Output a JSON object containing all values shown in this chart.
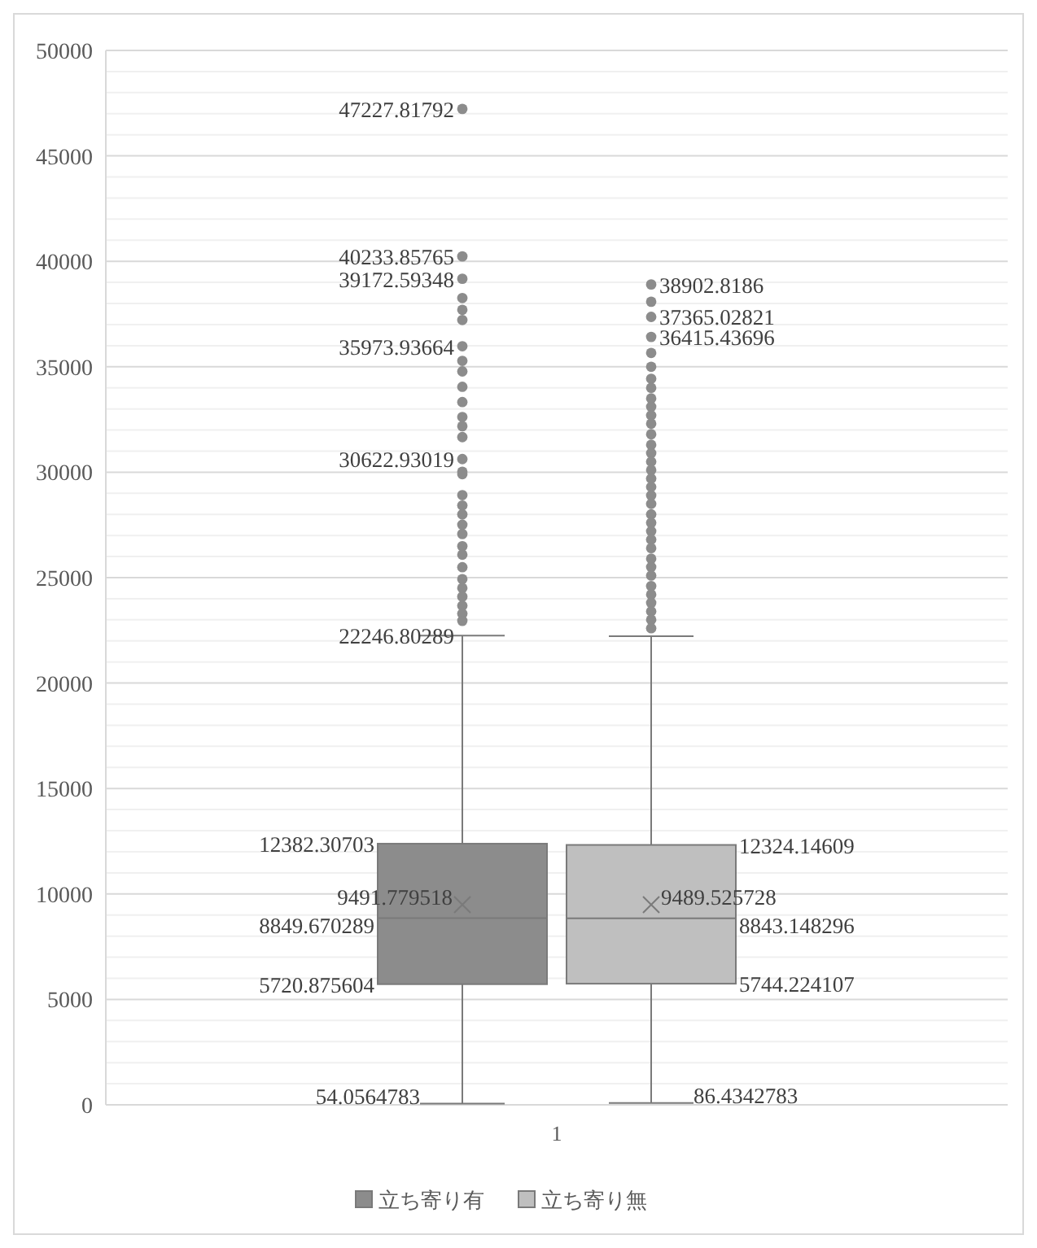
{
  "chart_data": {
    "type": "box",
    "categories": [
      "1"
    ],
    "ylim": [
      0,
      50000
    ],
    "yticks": [
      0,
      {
        "value": 1000,
        "label": null
      },
      {
        "value": 2000,
        "label": null
      },
      {
        "value": 3000,
        "label": null
      },
      {
        "value": 4000,
        "label": null
      },
      5000,
      {
        "value": 6000,
        "label": null
      },
      {
        "value": 7000,
        "label": null
      },
      {
        "value": 8000,
        "label": null
      },
      {
        "value": 9000,
        "label": null
      },
      10000,
      {
        "value": 11000,
        "label": null
      },
      {
        "value": 12000,
        "label": null
      },
      {
        "value": 13000,
        "label": null
      },
      {
        "value": 14000,
        "label": null
      },
      15000,
      {
        "value": 16000,
        "label": null
      },
      {
        "value": 17000,
        "label": null
      },
      {
        "value": 18000,
        "label": null
      },
      {
        "value": 19000,
        "label": null
      },
      20000,
      {
        "value": 21000,
        "label": null
      },
      {
        "value": 22000,
        "label": null
      },
      {
        "value": 23000,
        "label": null
      },
      {
        "value": 24000,
        "label": null
      },
      25000,
      {
        "value": 26000,
        "label": null
      },
      {
        "value": 27000,
        "label": null
      },
      {
        "value": 28000,
        "label": null
      },
      {
        "value": 29000,
        "label": null
      },
      30000,
      {
        "value": 31000,
        "label": null
      },
      {
        "value": 32000,
        "label": null
      },
      {
        "value": 33000,
        "label": null
      },
      {
        "value": 34000,
        "label": null
      },
      35000,
      {
        "value": 36000,
        "label": null
      },
      {
        "value": 37000,
        "label": null
      },
      {
        "value": 38000,
        "label": null
      },
      {
        "value": 39000,
        "label": null
      },
      40000,
      {
        "value": 41000,
        "label": null
      },
      {
        "value": 42000,
        "label": null
      },
      {
        "value": 43000,
        "label": null
      },
      {
        "value": 44000,
        "label": null
      },
      45000,
      {
        "value": 46000,
        "label": null
      },
      {
        "value": 47000,
        "label": null
      },
      {
        "value": 48000,
        "label": null
      },
      {
        "value": 49000,
        "label": null
      },
      50000
    ],
    "grid": "y",
    "legend": "bottom",
    "marker": "circle",
    "series": [
      {
        "name": "立ち寄り有",
        "color": "#8c8c8c",
        "boxes": [
          {
            "low": 54.0564783,
            "q1": 5720.875604,
            "median": 8849.670289,
            "q3": 12382.30703,
            "high": 22246.80289,
            "mean": 9491.779518,
            "outliers": [
              47227.81792,
              40233.85765,
              39172.59348,
              38260.66763,
              37699.88183,
              37217.00919,
              35973.93664,
              35278.41999,
              34780.98216,
              34050.38994,
              33325.93054,
              32618.35457,
              32181.06805,
              31665.16894,
              30622.93019,
              30020.6,
              29908.87927,
              28914.85577,
              28420.5,
              28000.3,
              27509.3,
              27069.3,
              26490.7,
              26090.7,
              25494.1,
              24930.4,
              24507.4,
              24097.4,
              23667.3,
              23292.4,
              22950.5
            ]
          }
        ]
      },
      {
        "name": "立ち寄り無",
        "color": "#bfbfbf",
        "boxes": [
          {
            "low": 86.4342783,
            "q1": 5744.224107,
            "median": 8843.148296,
            "q3": 12324.14609,
            "high": 22219.81,
            "mean": 9489.525728,
            "outliers": [
              38902.8186,
              38084.16819,
              37365.02821,
              36415.43696,
              35656.31358,
              34998.89732,
              34430.18966,
              34000,
              33500,
              33100,
              32700,
              32300,
              31800,
              31300,
              30900,
              30500,
              30100,
              29700,
              29300,
              28900,
              28500,
              28000,
              27600,
              27200,
              26800,
              26400,
              25900,
              25500,
              25100,
              24600,
              24200,
              23800,
              23400,
              23000,
              22600
            ]
          }
        ]
      }
    ],
    "annotations": [
      "12382.30703",
      "8849.670289",
      "5720.875604",
      "9491.779518",
      "54.0564783",
      "22246.80289",
      "47227.81792",
      "40233.85765",
      "39172.59348",
      "35973.93664",
      "30622.93019",
      "12324.14609",
      "8843.148296",
      "5744.224107",
      "9489.525728",
      "86.4342783",
      "38902.8186",
      "37365.02821",
      "36415.43696"
    ]
  }
}
